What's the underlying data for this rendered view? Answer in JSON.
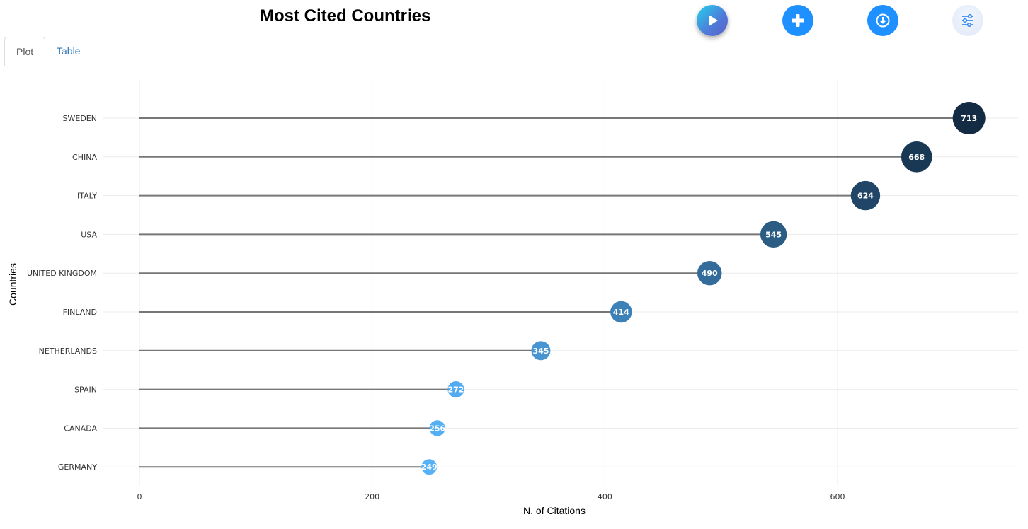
{
  "title": "Most Cited Countries",
  "toolbar": {
    "play_icon": "play-icon",
    "add_icon": "plus-icon",
    "download_icon": "download-icon",
    "settings_icon": "sliders-icon"
  },
  "tabs": [
    {
      "label": "Plot",
      "active": true
    },
    {
      "label": "Table",
      "active": false
    }
  ],
  "colors": {
    "accent": "#1e90ff",
    "tab_link": "#337ab7",
    "stem": "#777777",
    "point_high": "#132b43",
    "point_low": "#56b1f7"
  },
  "chart_data": {
    "type": "scatter",
    "style": "lollipop",
    "xlabel": "N. of Citations",
    "ylabel": "Countries",
    "xlim": [
      -30,
      750
    ],
    "xticks": [
      0,
      200,
      400,
      600
    ],
    "grid": true,
    "categories": [
      "SWEDEN",
      "CHINA",
      "ITALY",
      "USA",
      "UNITED KINGDOM",
      "FINLAND",
      "NETHERLANDS",
      "SPAIN",
      "CANADA",
      "GERMANY"
    ],
    "values": [
      713,
      668,
      624,
      545,
      490,
      414,
      345,
      272,
      256,
      249
    ]
  }
}
